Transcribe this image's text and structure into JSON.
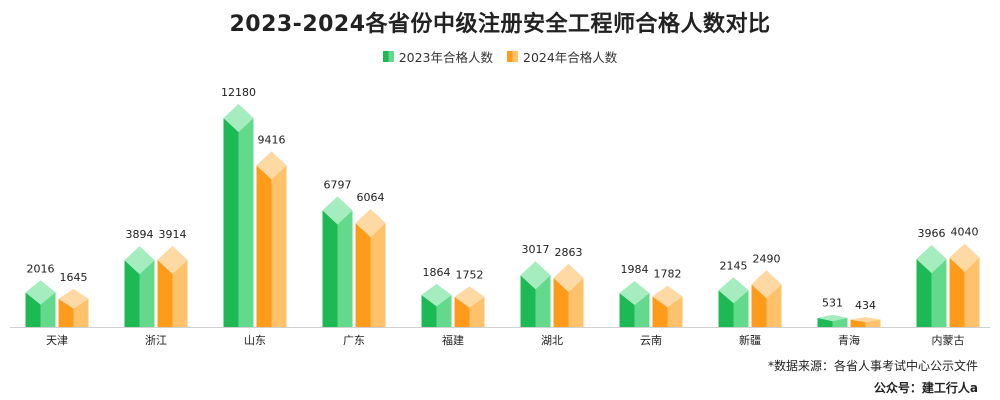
{
  "chart_data": {
    "type": "bar",
    "title": "2023-2024各省份中级注册安全工程师合格人数对比",
    "categories": [
      "天津",
      "浙江",
      "山东",
      "广东",
      "福建",
      "湖北",
      "云南",
      "新疆",
      "青海",
      "内蒙古"
    ],
    "series": [
      {
        "name": "2023年合格人数",
        "values": [
          2016,
          3894,
          12180,
          6797,
          1864,
          3017,
          1984,
          2145,
          531,
          3966
        ]
      },
      {
        "name": "2024年合格人数",
        "values": [
          1645,
          3914,
          9416,
          6064,
          1752,
          2863,
          1782,
          2490,
          434,
          4040
        ]
      }
    ],
    "xlabel": "",
    "ylabel": "",
    "ylim": [
      0,
      12180
    ],
    "grid": false,
    "legend_position": "top-center",
    "colors": {
      "series_2023": "#1db954",
      "series_2024": "#ff9b1a"
    }
  },
  "footer": {
    "source": "*数据来源：各省人事考试中心公示文件",
    "account": "公众号：建工行人a"
  }
}
